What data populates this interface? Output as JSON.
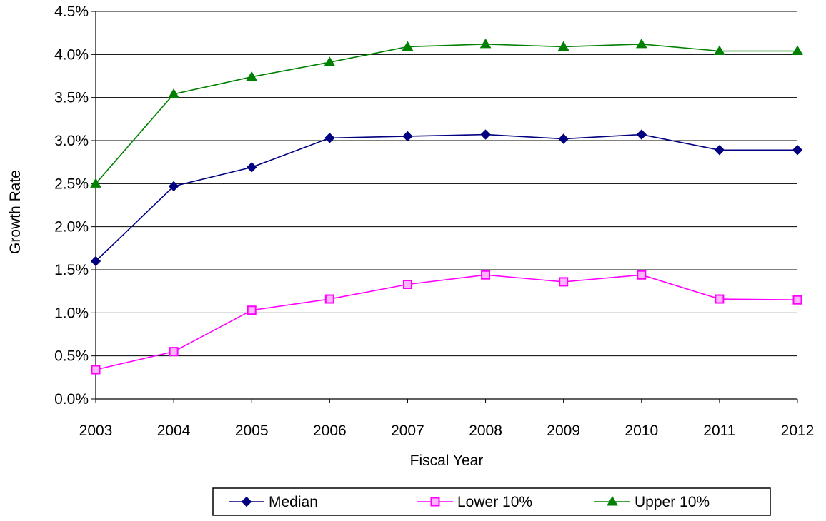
{
  "chart_data": {
    "type": "line",
    "title": "",
    "xlabel": "Fiscal Year",
    "ylabel": "Growth Rate",
    "categories": [
      "2003",
      "2004",
      "2005",
      "2006",
      "2007",
      "2008",
      "2009",
      "2010",
      "2011",
      "2012"
    ],
    "ylim": [
      0,
      4.5
    ],
    "yticks": [
      0,
      0.5,
      1.0,
      1.5,
      2.0,
      2.5,
      3.0,
      3.5,
      4.0,
      4.5
    ],
    "ytick_labels": [
      "0.0%",
      "0.5%",
      "1.0%",
      "1.5%",
      "2.0%",
      "2.5%",
      "3.0%",
      "3.5%",
      "4.0%",
      "4.5%"
    ],
    "grid": true,
    "legend_position": "bottom",
    "series": [
      {
        "name": "Median",
        "color": "#000080",
        "marker": "diamond",
        "values": [
          1.6,
          2.47,
          2.69,
          3.03,
          3.05,
          3.07,
          3.02,
          3.07,
          2.89,
          2.89
        ]
      },
      {
        "name": "Lower 10%",
        "color": "#FF00FF",
        "marker": "square",
        "values": [
          0.34,
          0.55,
          1.03,
          1.16,
          1.33,
          1.44,
          1.36,
          1.44,
          1.16,
          1.15
        ]
      },
      {
        "name": "Upper 10%",
        "color": "#008000",
        "marker": "triangle",
        "values": [
          2.5,
          3.54,
          3.74,
          3.91,
          4.09,
          4.12,
          4.09,
          4.12,
          4.04,
          4.04
        ]
      }
    ]
  }
}
